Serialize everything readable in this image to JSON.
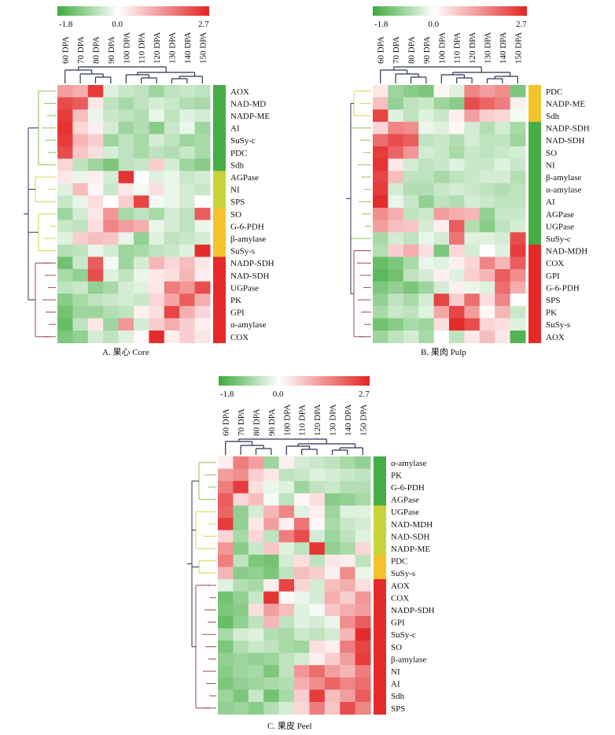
{
  "chart_data": [
    {
      "type": "heatmap",
      "caption": "A. 果心 Core",
      "colorbar": {
        "min": -1.8,
        "mid": 0.0,
        "max": 2.7,
        "min_label": "-1.8",
        "mid_label": "0.0",
        "max_label": "2.7",
        "colors": [
          "#3cab3c",
          "#ffffff",
          "#e32424"
        ]
      },
      "columns": [
        "60 DPA",
        "70 DPA",
        "80 DPA",
        "90 DPA",
        "100 DPA",
        "110 DPA",
        "120 DPA",
        "130 DPA",
        "140 DPA",
        "150 DPA"
      ],
      "rows": [
        "AOX",
        "NAD-MD",
        "NADP-ME",
        "AI",
        "SuSy-c",
        "PDC",
        "Sdh",
        "AGPase",
        "NI",
        "SPS",
        "SO",
        "G-6-PDH",
        "β-amylase",
        "SuSy-s",
        "NADP-SDH",
        "NAD-SDH",
        "UGPase",
        "PK",
        "GPI",
        "α-amylase",
        "COX"
      ],
      "cluster_colors": [
        "#46ad46",
        "#46ad46",
        "#46ad46",
        "#46ad46",
        "#46ad46",
        "#46ad46",
        "#46ad46",
        "#c8d43a",
        "#c8d43a",
        "#c8d43a",
        "#f4c22c",
        "#f4c22c",
        "#f4c22c",
        "#f4c22c",
        "#e52a2a",
        "#e52a2a",
        "#e52a2a",
        "#e52a2a",
        "#e52a2a",
        "#e52a2a",
        "#e52a2a"
      ],
      "values": [
        [
          1.2,
          1.0,
          2.4,
          -0.3,
          -0.5,
          -0.6,
          -0.9,
          -0.6,
          -0.5,
          -0.6
        ],
        [
          2.2,
          2.0,
          0.3,
          -0.6,
          -0.8,
          -0.6,
          -0.4,
          -0.5,
          -0.7,
          -0.8
        ],
        [
          2.4,
          0.8,
          -0.2,
          -0.5,
          -0.6,
          -0.7,
          -0.2,
          -0.6,
          -0.3,
          -0.4
        ],
        [
          2.5,
          0.5,
          0.2,
          -0.4,
          -0.9,
          -0.7,
          -1.1,
          -0.5,
          -0.2,
          -0.9
        ],
        [
          2.4,
          0.9,
          0.6,
          -0.9,
          -0.6,
          -0.8,
          -0.4,
          -0.6,
          -0.9,
          -0.8
        ],
        [
          2.2,
          0.7,
          0.4,
          -0.4,
          -0.6,
          -0.8,
          -0.6,
          -0.7,
          -0.5,
          -0.8
        ],
        [
          0.5,
          -0.6,
          -0.9,
          -1.2,
          -0.6,
          -0.5,
          0.6,
          -0.4,
          -0.9,
          -1.1
        ],
        [
          0.3,
          -0.2,
          0.2,
          -0.4,
          2.5,
          0.0,
          -0.3,
          -0.2,
          -0.5,
          -0.4
        ],
        [
          -0.3,
          0.8,
          0.1,
          -0.5,
          0.3,
          -0.1,
          0.4,
          -0.2,
          -0.4,
          -0.5
        ],
        [
          -0.5,
          -0.2,
          0.4,
          0.0,
          0.6,
          2.3,
          -0.1,
          -0.2,
          -0.4,
          0.0
        ],
        [
          -0.9,
          -0.4,
          0.3,
          1.3,
          -0.8,
          -0.6,
          -0.8,
          -0.4,
          -0.6,
          2.0
        ],
        [
          -0.5,
          -0.6,
          0.4,
          1.5,
          1.2,
          1.0,
          -0.2,
          -0.4,
          -0.6,
          -0.2
        ],
        [
          -0.3,
          0.6,
          0.8,
          0.7,
          -0.2,
          -1.0,
          -0.3,
          -0.6,
          -0.5,
          -0.4
        ],
        [
          -0.7,
          -0.6,
          -0.2,
          -0.4,
          -0.9,
          -0.8,
          -0.6,
          -0.5,
          -0.3,
          2.6
        ],
        [
          -1.3,
          -0.5,
          2.0,
          -0.1,
          -0.9,
          -0.4,
          0.9,
          0.5,
          0.8,
          0.3
        ],
        [
          -0.8,
          -1.0,
          2.2,
          -0.3,
          -0.6,
          -0.2,
          0.3,
          0.4,
          0.9,
          0.2
        ],
        [
          -0.6,
          -0.5,
          -1.0,
          -0.8,
          -0.4,
          -0.3,
          0.3,
          1.6,
          1.3,
          2.2
        ],
        [
          -1.1,
          -0.8,
          -0.6,
          -0.5,
          -0.4,
          -0.5,
          0.5,
          1.1,
          2.0,
          1.0
        ],
        [
          -1.3,
          -0.9,
          -0.9,
          -0.7,
          -0.6,
          0.2,
          0.4,
          2.3,
          1.0,
          0.5
        ],
        [
          -1.4,
          -0.6,
          0.3,
          -0.9,
          1.3,
          -0.4,
          0.6,
          1.0,
          0.6,
          0.2
        ],
        [
          -1.2,
          -1.0,
          -0.4,
          -0.6,
          -0.3,
          0.1,
          2.6,
          0.2,
          0.6,
          0.3
        ]
      ]
    },
    {
      "type": "heatmap",
      "caption": "B. 果肉 Pulp",
      "colorbar": {
        "min": -1.8,
        "mid": 0.0,
        "max": 2.7,
        "min_label": "-1.8",
        "mid_label": "0.0",
        "max_label": "2.7",
        "colors": [
          "#3cab3c",
          "#ffffff",
          "#e32424"
        ]
      },
      "columns": [
        "60 DPA",
        "70 DPA",
        "80 DPA",
        "90 DPA",
        "100 DPA",
        "110 DPA",
        "120 DPA",
        "130 DPA",
        "140 DPA",
        "150 DPA"
      ],
      "rows": [
        "PDC",
        "NADP-ME",
        "Sdh",
        "NADP-SDH",
        "NAD-SDH",
        "SO",
        "NI",
        "β-amylase",
        "α-amylase",
        "AI",
        "AGPase",
        "UGPase",
        "SuSy-c",
        "NAD-MDH",
        "COX",
        "GPI",
        "G-6-PDH",
        "SPS",
        "PK",
        "SuSy-s",
        "AOX"
      ],
      "cluster_colors": [
        "#f4c22c",
        "#f4c22c",
        "#f4c22c",
        "#46ad46",
        "#46ad46",
        "#46ad46",
        "#46ad46",
        "#46ad46",
        "#46ad46",
        "#46ad46",
        "#46ad46",
        "#46ad46",
        "#46ad46",
        "#e52a2a",
        "#e52a2a",
        "#e52a2a",
        "#e52a2a",
        "#e52a2a",
        "#e52a2a",
        "#e52a2a",
        "#e52a2a"
      ],
      "values": [
        [
          0.3,
          -0.9,
          -1.1,
          -1.2,
          0.1,
          -0.3,
          1.5,
          1.2,
          1.4,
          -1.2
        ],
        [
          0.8,
          -1.0,
          -0.6,
          -0.5,
          -0.9,
          -1.1,
          2.2,
          1.9,
          1.6,
          0.2
        ],
        [
          2.3,
          -0.3,
          -0.6,
          -0.3,
          -0.5,
          0.2,
          1.2,
          0.6,
          0.5,
          -0.1
        ],
        [
          0.5,
          1.5,
          1.4,
          -0.2,
          -0.3,
          0.1,
          -0.4,
          -0.7,
          -0.4,
          -0.8
        ],
        [
          1.8,
          2.2,
          2.0,
          -0.6,
          -0.5,
          -0.7,
          -0.4,
          -0.6,
          -0.6,
          -0.9
        ],
        [
          2.4,
          1.9,
          1.3,
          -0.4,
          -0.5,
          -0.8,
          -0.5,
          -0.6,
          -0.5,
          -0.4
        ],
        [
          2.5,
          0.3,
          -0.4,
          -0.6,
          -0.5,
          -0.3,
          -0.5,
          -0.5,
          -0.3,
          -0.5
        ],
        [
          2.3,
          0.8,
          -0.6,
          -0.6,
          -0.8,
          -0.6,
          -0.5,
          -0.4,
          -0.4,
          -0.7
        ],
        [
          2.4,
          -0.4,
          -0.7,
          -0.7,
          -0.5,
          -0.4,
          -0.5,
          -0.6,
          -0.7,
          -0.6
        ],
        [
          2.6,
          -0.2,
          -0.5,
          -1.0,
          -0.6,
          -0.7,
          -0.4,
          -0.5,
          -0.6,
          -0.6
        ],
        [
          1.4,
          1.0,
          -0.6,
          -0.5,
          1.2,
          1.0,
          0.9,
          -1.0,
          -0.5,
          -0.5
        ],
        [
          1.2,
          0.8,
          0.7,
          -0.4,
          0.2,
          2.0,
          -0.7,
          -1.1,
          -0.6,
          -0.4
        ],
        [
          -0.8,
          -0.4,
          -0.6,
          -0.2,
          -0.4,
          1.7,
          -0.3,
          -0.3,
          -0.4,
          2.2
        ],
        [
          -0.7,
          0.6,
          1.0,
          0.4,
          -1.2,
          0.5,
          -0.4,
          0.0,
          -0.3,
          2.4
        ],
        [
          -1.4,
          -1.2,
          -0.8,
          -0.2,
          -0.3,
          0.2,
          0.5,
          1.5,
          0.9,
          2.0
        ],
        [
          -1.5,
          -1.3,
          -0.6,
          -0.4,
          0.2,
          -0.3,
          0.6,
          0.9,
          2.0,
          1.4
        ],
        [
          -1.2,
          -1.0,
          -1.2,
          -0.9,
          -0.4,
          0.2,
          -0.2,
          -0.3,
          1.8,
          1.0
        ],
        [
          -1.0,
          -0.6,
          -0.8,
          -0.4,
          2.3,
          0.6,
          1.8,
          0.4,
          1.5,
          0.0
        ],
        [
          -0.8,
          -0.5,
          -0.6,
          -0.3,
          1.1,
          2.3,
          1.2,
          0.1,
          0.9,
          -0.5
        ],
        [
          -1.3,
          -1.1,
          -0.8,
          -0.9,
          0.4,
          2.6,
          2.2,
          0.5,
          0.4,
          -0.3
        ],
        [
          -0.9,
          -0.6,
          -0.4,
          -0.8,
          0.0,
          -0.6,
          0.3,
          0.8,
          0.3,
          -1.6
        ]
      ]
    },
    {
      "type": "heatmap",
      "caption": "C. 果皮 Peel",
      "colorbar": {
        "min": -1.8,
        "mid": 0.0,
        "max": 2.7,
        "min_label": "-1.8",
        "mid_label": "0.0",
        "max_label": "2.7",
        "colors": [
          "#3cab3c",
          "#ffffff",
          "#e32424"
        ]
      },
      "columns": [
        "60 DPA",
        "70 DPA",
        "80 DPA",
        "90 DPA",
        "100 DPA",
        "110 DPA",
        "120 DPA",
        "130 DPA",
        "140 DPA",
        "150 DPA"
      ],
      "rows": [
        "α-amylase",
        "PK",
        "G-6-PDH",
        "AGPase",
        "UGPase",
        "NAD-MDH",
        "NAD-SDH",
        "NADP-ME",
        "PDC",
        "SuSy-s",
        "AOX",
        "COX",
        "NADP-SDH",
        "GPI",
        "SuSy-c",
        "SO",
        "β-amylase",
        "NI",
        "AI",
        "Sdh",
        "SPS"
      ],
      "cluster_colors": [
        "#46ad46",
        "#46ad46",
        "#46ad46",
        "#46ad46",
        "#c8d43a",
        "#c8d43a",
        "#c8d43a",
        "#c8d43a",
        "#f4c22c",
        "#f4c22c",
        "#e52a2a",
        "#e52a2a",
        "#e52a2a",
        "#e52a2a",
        "#e52a2a",
        "#e52a2a",
        "#e52a2a",
        "#e52a2a",
        "#e52a2a",
        "#e52a2a",
        "#e52a2a"
      ],
      "values": [
        [
          0.2,
          1.6,
          1.2,
          -0.9,
          0.2,
          -0.4,
          -0.5,
          -0.6,
          -0.8,
          -1.0
        ],
        [
          1.2,
          1.4,
          0.6,
          0.3,
          -0.6,
          -0.5,
          -0.3,
          -0.4,
          -0.5,
          -0.6
        ],
        [
          1.6,
          2.4,
          0.4,
          -0.2,
          -0.3,
          -0.9,
          -0.6,
          -0.5,
          -0.7,
          -0.7
        ],
        [
          2.0,
          0.5,
          0.8,
          -0.1,
          -0.6,
          0.1,
          0.4,
          -1.1,
          -1.0,
          -0.8
        ],
        [
          1.9,
          -1.0,
          -0.4,
          0.9,
          1.5,
          -0.3,
          0.2,
          -0.9,
          -0.3,
          -0.3
        ],
        [
          2.4,
          -1.0,
          0.3,
          1.2,
          0.2,
          1.7,
          0.1,
          -0.8,
          -0.5,
          -0.4
        ],
        [
          0.5,
          -0.8,
          0.5,
          -0.6,
          1.6,
          2.2,
          -0.4,
          -0.9,
          -0.6,
          -0.3
        ],
        [
          1.3,
          -1.1,
          -0.5,
          0.7,
          -0.3,
          -0.6,
          2.5,
          -1.0,
          -0.8,
          0.5
        ],
        [
          1.6,
          -0.6,
          -1.2,
          -1.3,
          -0.4,
          0.4,
          -0.6,
          0.3,
          0.2,
          -0.6
        ],
        [
          0.9,
          -1.1,
          -1.0,
          -1.2,
          -0.6,
          0.8,
          0.6,
          0.2,
          1.4,
          -0.2
        ],
        [
          -0.3,
          -0.7,
          -0.8,
          0.2,
          2.3,
          0.5,
          -0.4,
          0.8,
          1.0,
          0.4
        ],
        [
          -1.3,
          -1.0,
          -0.5,
          2.5,
          0.1,
          -0.2,
          -0.4,
          1.0,
          0.6,
          1.3
        ],
        [
          -1.2,
          -1.1,
          0.4,
          1.2,
          0.8,
          -0.3,
          -0.1,
          0.7,
          1.0,
          1.2
        ],
        [
          -1.4,
          -1.0,
          -0.6,
          0.9,
          -0.6,
          -0.3,
          -0.4,
          -0.2,
          1.4,
          2.0
        ],
        [
          -0.8,
          -0.4,
          -0.3,
          -0.7,
          -0.8,
          -0.5,
          -0.6,
          -0.4,
          0.9,
          2.6
        ],
        [
          -1.2,
          -0.7,
          -0.5,
          -0.6,
          -0.8,
          -0.9,
          0.4,
          0.2,
          1.6,
          2.3
        ],
        [
          -1.0,
          -0.9,
          -1.0,
          -0.9,
          -0.6,
          -0.4,
          0.2,
          0.6,
          1.2,
          2.4
        ],
        [
          -1.1,
          -0.9,
          -0.8,
          -1.2,
          -0.6,
          1.3,
          1.8,
          1.2,
          0.9,
          1.6
        ],
        [
          -1.2,
          -1.0,
          -0.9,
          -0.8,
          -0.7,
          1.0,
          1.4,
          1.9,
          1.5,
          1.8
        ],
        [
          -0.9,
          -1.2,
          -0.5,
          -1.3,
          -0.8,
          0.6,
          2.4,
          0.8,
          1.2,
          2.0
        ],
        [
          -1.0,
          -0.9,
          -1.1,
          -0.7,
          -0.4,
          0.5,
          1.6,
          0.7,
          2.2,
          1.5
        ]
      ]
    }
  ]
}
